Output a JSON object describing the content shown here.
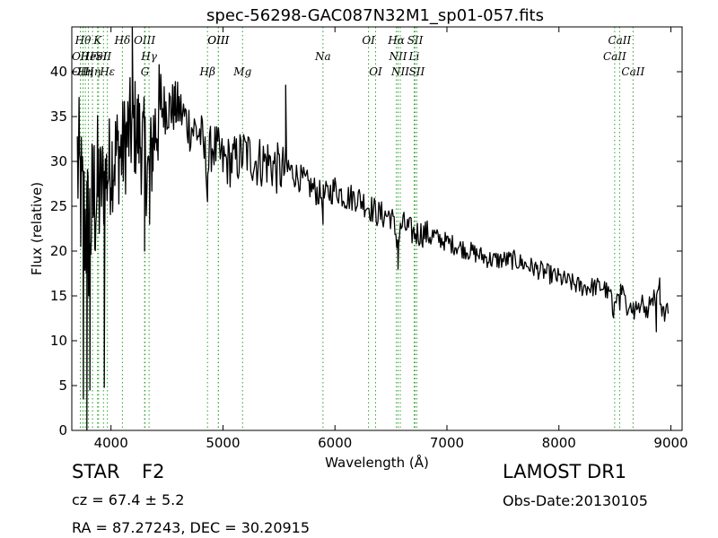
{
  "chart_data": {
    "type": "line",
    "title": "spec-56298-GAC087N32M1_sp01-057.fits",
    "xlabel": "Wavelength (Å)",
    "ylabel": "Flux (relative)",
    "xlim": [
      3650,
      9100
    ],
    "ylim": [
      0,
      45
    ],
    "xticks": [
      4000,
      5000,
      6000,
      7000,
      8000,
      9000
    ],
    "yticks": [
      0,
      5,
      10,
      15,
      20,
      25,
      30,
      35,
      40
    ],
    "grid": false,
    "line_color": "#000000",
    "marker_color": "#2ca02c",
    "anchors": {
      "x": [
        3700,
        3750,
        3800,
        3850,
        3900,
        3950,
        4000,
        4050,
        4100,
        4150,
        4200,
        4250,
        4300,
        4340,
        4380,
        4450,
        4500,
        4600,
        4700,
        4800,
        4862,
        4900,
        5000,
        5100,
        5200,
        5300,
        5400,
        5500,
        5600,
        5700,
        5800,
        5893,
        6000,
        6100,
        6200,
        6300,
        6400,
        6500,
        6563,
        6600,
        6700,
        6800,
        7000,
        7200,
        7400,
        7600,
        7800,
        8000,
        8200,
        8400,
        8498,
        8542,
        8600,
        8662,
        8700,
        8800,
        8850,
        8900,
        8950,
        8980
      ],
      "y": [
        30,
        24,
        22,
        26,
        27,
        28,
        30,
        31,
        31,
        33,
        34,
        33,
        31,
        28,
        33,
        36,
        36,
        36,
        34,
        33,
        29,
        32,
        30,
        30,
        31,
        30,
        30,
        29,
        29,
        28,
        27,
        26,
        27,
        26,
        26,
        25,
        24,
        24,
        21,
        23,
        22,
        22,
        21,
        20,
        19,
        19,
        18,
        17,
        16,
        16,
        14,
        15,
        14,
        14,
        14,
        14,
        15,
        15,
        14,
        13
      ]
    },
    "sharp_features": [
      {
        "x": 3753,
        "y": 3.5
      },
      {
        "x": 3785,
        "y": 0
      },
      {
        "x": 3812,
        "y": 4.5
      },
      {
        "x": 3940,
        "y": 4.8
      },
      {
        "x": 4190,
        "y": 45
      },
      {
        "x": 4300,
        "y": 20
      },
      {
        "x": 4345,
        "y": 23
      },
      {
        "x": 4862,
        "y": 25.5
      },
      {
        "x": 5560,
        "y": 38.5
      },
      {
        "x": 5893,
        "y": 23
      },
      {
        "x": 6563,
        "y": 18
      },
      {
        "x": 8870,
        "y": 11
      },
      {
        "x": 8900,
        "y": 17
      }
    ],
    "line_markers": [
      {
        "x": 3727,
        "label": "OII",
        "row": 2
      },
      {
        "x": 3727,
        "label": "OII",
        "row": 3
      },
      {
        "x": 3750,
        "label": "Hθ",
        "row": 1
      },
      {
        "x": 3771,
        "label": "Hη",
        "row": 3
      },
      {
        "x": 3798,
        "label": "He",
        "row": 2
      },
      {
        "x": 3835,
        "label": "Hη",
        "row": 3
      },
      {
        "x": 3880,
        "label": "K",
        "row": 1
      },
      {
        "x": 3889,
        "label": "FeI",
        "row": 2
      },
      {
        "x": 3968,
        "label": "Hε",
        "row": 3
      },
      {
        "x": 3933,
        "label": "SII",
        "row": 2
      },
      {
        "x": 4102,
        "label": "Hδ",
        "row": 1
      },
      {
        "x": 4300,
        "label": "OIII",
        "row": 1
      },
      {
        "x": 4340,
        "label": "Hγ",
        "row": 2
      },
      {
        "x": 4304,
        "label": "G",
        "row": 3
      },
      {
        "x": 4862,
        "label": "Hβ",
        "row": 3
      },
      {
        "x": 4959,
        "label": "OIII",
        "row": 1
      },
      {
        "x": 4959,
        "label": "OIII",
        "row": 4
      },
      {
        "x": 5175,
        "label": "Mg",
        "row": 3
      },
      {
        "x": 5893,
        "label": "Na",
        "row": 2
      },
      {
        "x": 6300,
        "label": "OI",
        "row": 1
      },
      {
        "x": 6363,
        "label": "OI",
        "row": 3
      },
      {
        "x": 6548,
        "label": "Hα",
        "row": 1
      },
      {
        "x": 6563,
        "label": "NII",
        "row": 2
      },
      {
        "x": 6583,
        "label": "NII",
        "row": 3
      },
      {
        "x": 6716,
        "label": "SII",
        "row": 1
      },
      {
        "x": 6707,
        "label": "Li",
        "row": 2
      },
      {
        "x": 6731,
        "label": "SII",
        "row": 3
      },
      {
        "x": 8498,
        "label": "CaII",
        "row": 2
      },
      {
        "x": 8542,
        "label": "CaII",
        "row": 1
      },
      {
        "x": 8662,
        "label": "CaII",
        "row": 3
      }
    ]
  },
  "info": {
    "object_class": "STAR",
    "subclass": "F2",
    "survey": "LAMOST DR1",
    "redshift": "cz = 67.4 ± 5.2",
    "obs_date": "Obs-Date:20130105",
    "coords": "RA = 87.27243, DEC = 30.20915"
  }
}
